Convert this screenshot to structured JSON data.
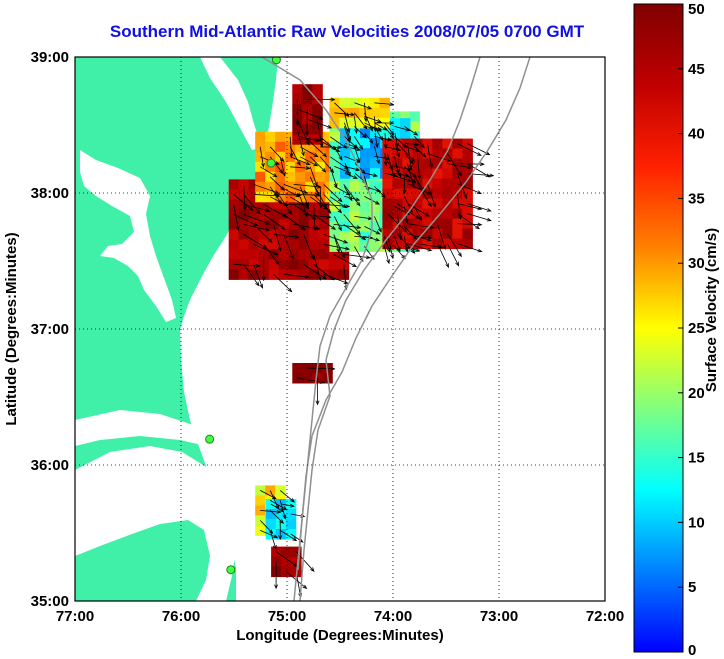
{
  "title": "Southern Mid-Atlantic Raw Velocities 2008/07/05 0700 GMT",
  "map": {
    "x_label": "Longitude (Degrees:Minutes)",
    "y_label": "Latitude (Degrees:Minutes)",
    "lon_range": [
      -77,
      -72
    ],
    "lat_range": [
      35,
      39
    ],
    "x_ticks": [
      {
        "lon": -77,
        "label": "77:00"
      },
      {
        "lon": -76,
        "label": "76:00"
      },
      {
        "lon": -75,
        "label": "75:00"
      },
      {
        "lon": -74,
        "label": "74:00"
      },
      {
        "lon": -73,
        "label": "73:00"
      },
      {
        "lon": -72,
        "label": "72:00"
      }
    ],
    "y_ticks": [
      {
        "lat": 35,
        "label": "35:00"
      },
      {
        "lat": 36,
        "label": "36:00"
      },
      {
        "lat": 37,
        "label": "37:00"
      },
      {
        "lat": 38,
        "label": "38:00"
      },
      {
        "lat": 39,
        "label": "39:00"
      }
    ],
    "grid": "dotted",
    "land_color": "#40f0a8",
    "stations": [
      {
        "lon": -75.1,
        "lat": 38.98
      },
      {
        "lon": -75.15,
        "lat": 38.22
      },
      {
        "lon": -75.73,
        "lat": 36.19
      },
      {
        "lon": -75.53,
        "lat": 35.23
      }
    ]
  },
  "colorbar": {
    "label": "Surface Velocity (cm/s)",
    "min": 0,
    "max": 50,
    "ticks": [
      {
        "value": 0,
        "label": "0"
      },
      {
        "value": 5,
        "label": "5"
      },
      {
        "value": 10,
        "label": "10"
      },
      {
        "value": 15,
        "label": "15"
      },
      {
        "value": 20,
        "label": "20"
      },
      {
        "value": 25,
        "label": "25"
      },
      {
        "value": 30,
        "label": "30"
      },
      {
        "value": 35,
        "label": "35"
      },
      {
        "value": 40,
        "label": "40"
      },
      {
        "value": 45,
        "label": "45"
      },
      {
        "value": 50,
        "label": "50"
      }
    ]
  },
  "velocity_regions": [
    {
      "lon_min": -75.55,
      "lon_max": -74.5,
      "lat_min": 37.4,
      "lat_max": 38.1,
      "speed": 46
    },
    {
      "lon_min": -75.3,
      "lon_max": -74.6,
      "lat_min": 38.0,
      "lat_max": 38.45,
      "speed": 30
    },
    {
      "lon_min": -74.95,
      "lon_max": -74.75,
      "lat_min": 38.4,
      "lat_max": 38.8,
      "speed": 48
    },
    {
      "lon_min": -74.6,
      "lon_max": -73.8,
      "lat_min": 37.6,
      "lat_max": 38.6,
      "speed": 18
    },
    {
      "lon_min": -74.5,
      "lon_max": -73.9,
      "lat_min": 38.15,
      "lat_max": 38.55,
      "speed": 10
    },
    {
      "lon_min": -74.1,
      "lon_max": -73.3,
      "lat_min": 37.6,
      "lat_max": 38.4,
      "speed": 44
    },
    {
      "lon_min": -74.6,
      "lon_max": -74.1,
      "lat_min": 38.55,
      "lat_max": 38.7,
      "speed": 26
    },
    {
      "lon_min": -74.95,
      "lon_max": -74.6,
      "lat_min": 36.63,
      "lat_max": 36.75,
      "speed": 50
    },
    {
      "lon_min": -75.3,
      "lon_max": -75.05,
      "lat_min": 35.5,
      "lat_max": 35.85,
      "speed": 26
    },
    {
      "lon_min": -75.2,
      "lon_max": -75.0,
      "lat_min": 35.5,
      "lat_max": 35.75,
      "speed": 12
    },
    {
      "lon_min": -75.15,
      "lon_max": -74.95,
      "lat_min": 35.25,
      "lat_max": 35.4,
      "speed": 47
    }
  ]
}
